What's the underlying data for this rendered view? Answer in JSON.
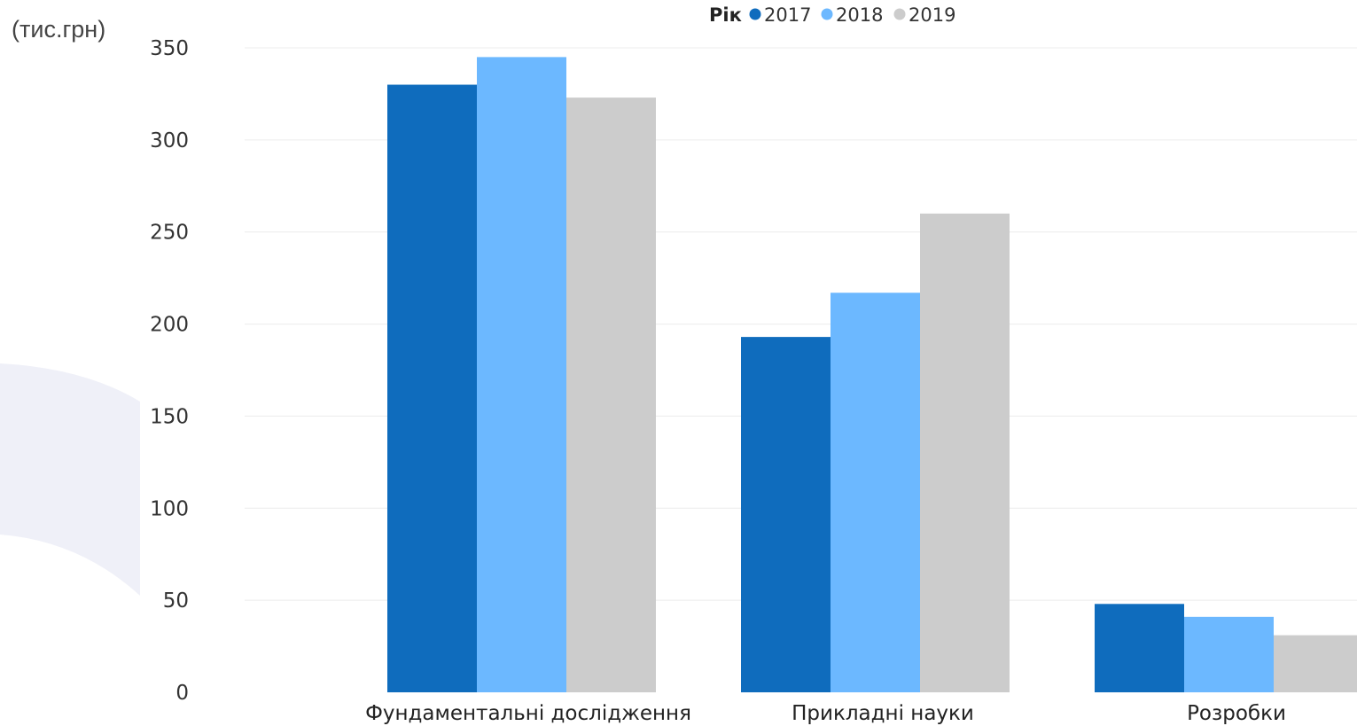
{
  "chart_data": {
    "type": "bar",
    "unit_label": "(тис.грн)",
    "legend_title": "Рік",
    "legend_position": "top-center",
    "categories": [
      "Фундаментальні дослідження",
      "Прикладні науки",
      "Розробки"
    ],
    "series": [
      {
        "name": "2017",
        "color": "#0F6CBD",
        "values": [
          330,
          193,
          48
        ]
      },
      {
        "name": "2018",
        "color": "#6CB8FF",
        "values": [
          345,
          217,
          41
        ]
      },
      {
        "name": "2019",
        "color": "#CCCCCC",
        "values": [
          323,
          260,
          31
        ]
      }
    ],
    "y_ticks": [
      "0",
      "50",
      "100",
      "150",
      "200",
      "250",
      "300",
      "350"
    ],
    "ylim": [
      0,
      350
    ],
    "grid": true
  }
}
